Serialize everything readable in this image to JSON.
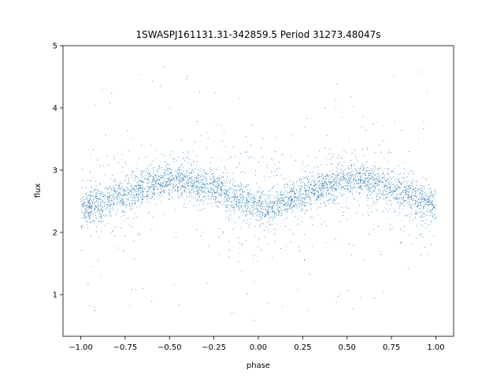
{
  "chart_data": {
    "type": "scatter",
    "title": "1SWASPJ161131.31-342859.5 Period 31273.48047s",
    "xlabel": "phase",
    "ylabel": "flux",
    "xlim": [
      -1.1,
      1.1
    ],
    "ylim": [
      0.33,
      5.0
    ],
    "x_ticks": [
      -1.0,
      -0.75,
      -0.5,
      -0.25,
      0.0,
      0.25,
      0.5,
      0.75,
      1.0
    ],
    "x_tick_labels": [
      "−1.00",
      "−0.75",
      "−0.50",
      "−0.25",
      "0.00",
      "0.25",
      "0.50",
      "0.75",
      "1.00"
    ],
    "y_ticks": [
      1,
      2,
      3,
      4,
      5
    ],
    "y_tick_labels": [
      "1",
      "2",
      "3",
      "4",
      "5"
    ],
    "grid": false,
    "legend": "none",
    "point_color": "#1f77b4",
    "series": [
      {
        "phase": [
          -1.0,
          -0.9,
          -0.8,
          -0.7,
          -0.6,
          -0.5,
          -0.45,
          -0.4,
          -0.3,
          -0.2,
          -0.1,
          0.0,
          0.05,
          0.1,
          0.2,
          0.3,
          0.4,
          0.5,
          0.55,
          0.6,
          0.7,
          0.8,
          0.9,
          1.0
        ],
        "flux": [
          2.42,
          2.45,
          2.55,
          2.68,
          2.78,
          2.83,
          2.84,
          2.83,
          2.75,
          2.65,
          2.52,
          2.4,
          2.38,
          2.42,
          2.55,
          2.68,
          2.78,
          2.83,
          2.84,
          2.83,
          2.75,
          2.65,
          2.52,
          2.42
        ]
      }
    ]
  }
}
